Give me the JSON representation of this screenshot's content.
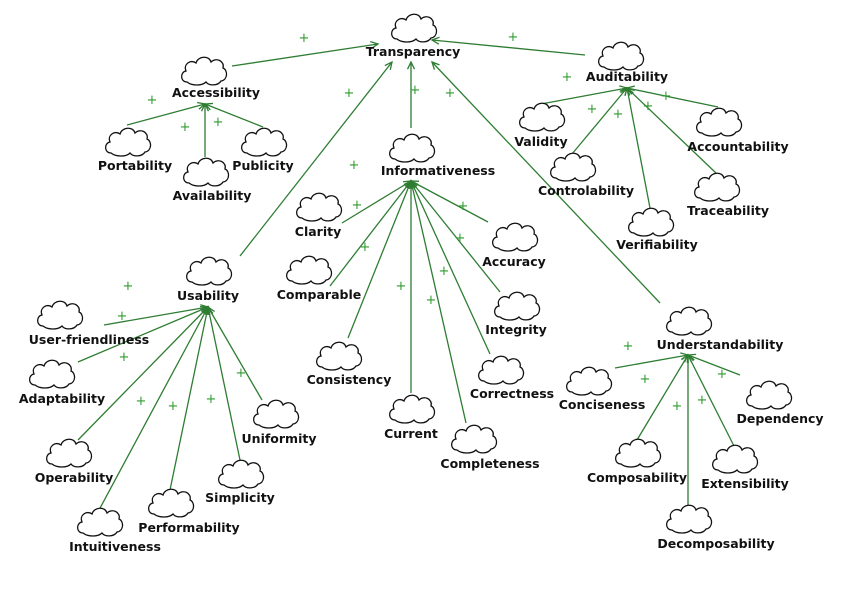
{
  "colors": {
    "edge": "#2e7d32",
    "sign": "#2e9c2e",
    "outline": "#111111"
  },
  "icon": "cloud-icon",
  "nodes": [
    {
      "id": "transparency",
      "label": "Transparency"
    },
    {
      "id": "accessibility",
      "label": "Accessibility"
    },
    {
      "id": "auditability",
      "label": "Auditability"
    },
    {
      "id": "portability",
      "label": "Portability"
    },
    {
      "id": "publicity",
      "label": "Publicity"
    },
    {
      "id": "availability",
      "label": "Availability"
    },
    {
      "id": "validity",
      "label": "Validity"
    },
    {
      "id": "controlability",
      "label": "Controlability"
    },
    {
      "id": "verifiability",
      "label": "Verifiability"
    },
    {
      "id": "accountability",
      "label": "Accountability"
    },
    {
      "id": "traceability",
      "label": "Traceability"
    },
    {
      "id": "informativeness",
      "label": "Informativeness"
    },
    {
      "id": "clarity",
      "label": "Clarity"
    },
    {
      "id": "comparable",
      "label": "Comparable"
    },
    {
      "id": "consistency",
      "label": "Consistency"
    },
    {
      "id": "current",
      "label": "Current"
    },
    {
      "id": "completeness",
      "label": "Completeness"
    },
    {
      "id": "correctness",
      "label": "Correctness"
    },
    {
      "id": "integrity",
      "label": "Integrity"
    },
    {
      "id": "accuracy",
      "label": "Accuracy"
    },
    {
      "id": "usability",
      "label": "Usability"
    },
    {
      "id": "user-friendliness",
      "label": "User-friendliness"
    },
    {
      "id": "adaptability",
      "label": "Adaptability"
    },
    {
      "id": "operability",
      "label": "Operability"
    },
    {
      "id": "intuitiveness",
      "label": "Intuitiveness"
    },
    {
      "id": "performability",
      "label": "Performability"
    },
    {
      "id": "simplicity",
      "label": "Simplicity"
    },
    {
      "id": "uniformity",
      "label": "Uniformity"
    },
    {
      "id": "understandability",
      "label": "Understandability"
    },
    {
      "id": "conciseness",
      "label": "Conciseness"
    },
    {
      "id": "composability",
      "label": "Composability"
    },
    {
      "id": "decomposability",
      "label": "Decomposability"
    },
    {
      "id": "extensibility",
      "label": "Extensibility"
    },
    {
      "id": "dependency",
      "label": "Dependency"
    }
  ],
  "edges": [
    {
      "from": "accessibility",
      "to": "transparency",
      "sign": "+"
    },
    {
      "from": "auditability",
      "to": "transparency",
      "sign": "+"
    },
    {
      "from": "informativeness",
      "to": "transparency",
      "sign": "+"
    },
    {
      "from": "usability",
      "to": "transparency",
      "sign": "+"
    },
    {
      "from": "understandability",
      "to": "transparency",
      "sign": "+"
    },
    {
      "from": "portability",
      "to": "accessibility",
      "sign": "+"
    },
    {
      "from": "availability",
      "to": "accessibility",
      "sign": "+"
    },
    {
      "from": "publicity",
      "to": "accessibility",
      "sign": "+"
    },
    {
      "from": "validity",
      "to": "auditability",
      "sign": "+"
    },
    {
      "from": "controlability",
      "to": "auditability",
      "sign": "+"
    },
    {
      "from": "verifiability",
      "to": "auditability",
      "sign": "+"
    },
    {
      "from": "traceability",
      "to": "auditability",
      "sign": "+"
    },
    {
      "from": "accountability",
      "to": "auditability",
      "sign": "+"
    },
    {
      "from": "clarity",
      "to": "informativeness",
      "sign": "+"
    },
    {
      "from": "comparable",
      "to": "informativeness",
      "sign": "+"
    },
    {
      "from": "consistency",
      "to": "informativeness",
      "sign": "+"
    },
    {
      "from": "current",
      "to": "informativeness",
      "sign": "+"
    },
    {
      "from": "completeness",
      "to": "informativeness",
      "sign": "+"
    },
    {
      "from": "correctness",
      "to": "informativeness",
      "sign": "+"
    },
    {
      "from": "integrity",
      "to": "informativeness",
      "sign": "+"
    },
    {
      "from": "accuracy",
      "to": "informativeness",
      "sign": "+"
    },
    {
      "from": "user-friendliness",
      "to": "usability",
      "sign": "+"
    },
    {
      "from": "adaptability",
      "to": "usability",
      "sign": "+"
    },
    {
      "from": "operability",
      "to": "usability",
      "sign": "+"
    },
    {
      "from": "intuitiveness",
      "to": "usability",
      "sign": "+"
    },
    {
      "from": "performability",
      "to": "usability",
      "sign": "+"
    },
    {
      "from": "simplicity",
      "to": "usability",
      "sign": "+"
    },
    {
      "from": "uniformity",
      "to": "usability",
      "sign": "+"
    },
    {
      "from": "conciseness",
      "to": "understandability",
      "sign": "+"
    },
    {
      "from": "composability",
      "to": "understandability",
      "sign": "+"
    },
    {
      "from": "decomposability",
      "to": "understandability",
      "sign": "+"
    },
    {
      "from": "extensibility",
      "to": "understandability",
      "sign": "+"
    },
    {
      "from": "dependency",
      "to": "understandability",
      "sign": "+"
    }
  ]
}
